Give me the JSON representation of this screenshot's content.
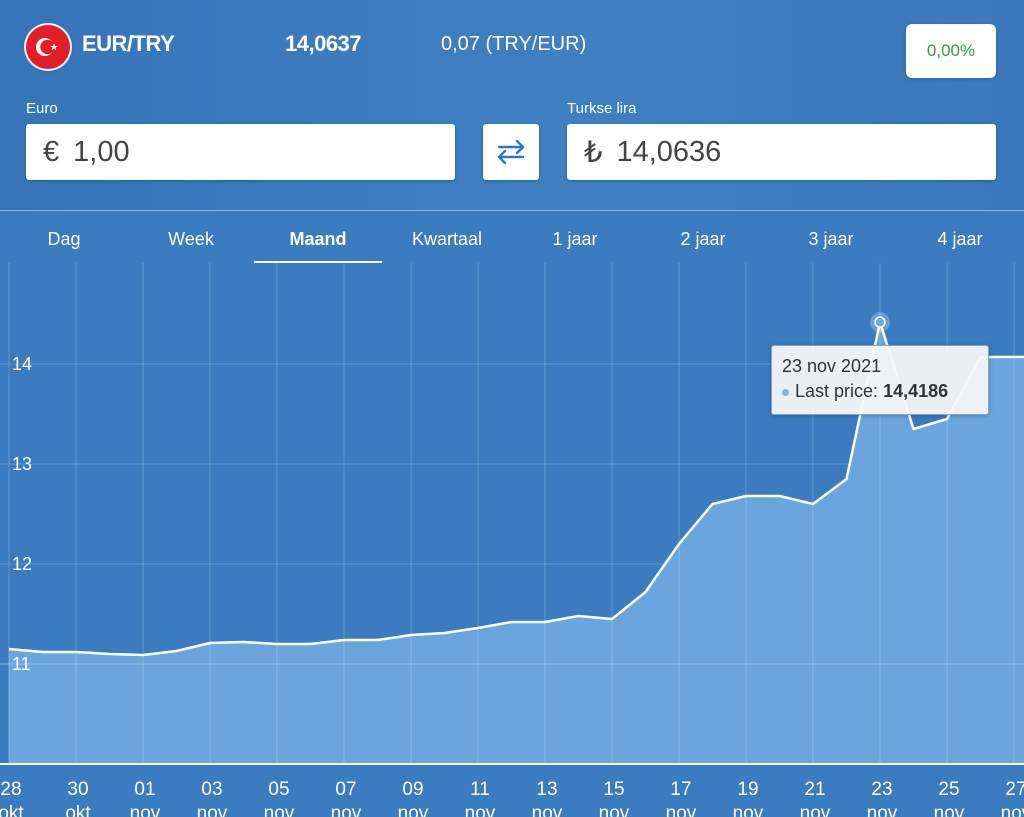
{
  "header": {
    "pair": "EUR/TRY",
    "rate": "14,0637",
    "inverse": "0,07 (TRY/EUR)",
    "change": "0,00%"
  },
  "converter": {
    "from_label": "Euro",
    "from_symbol": "€",
    "from_value": "1,00",
    "to_label": "Turkse lira",
    "to_symbol": "₺",
    "to_value": "14,0636"
  },
  "tabs": [
    {
      "label": "Dag",
      "active": false
    },
    {
      "label": "Week",
      "active": false
    },
    {
      "label": "Maand",
      "active": true
    },
    {
      "label": "Kwartaal",
      "active": false
    },
    {
      "label": "1 jaar",
      "active": false
    },
    {
      "label": "2 jaar",
      "active": false
    },
    {
      "label": "3 jaar",
      "active": false
    },
    {
      "label": "4 jaar",
      "active": false
    }
  ],
  "tooltip": {
    "date": "23 nov 2021",
    "series_label": "Last price:",
    "value": "14,4186"
  },
  "colors": {
    "background": "#3a7cbf",
    "area_fill": "#6fa8e0",
    "line": "#ffffff",
    "positive": "#3a9a3a"
  },
  "chart_data": {
    "type": "area",
    "x": [
      "2021-10-28",
      "2021-10-29",
      "2021-10-30",
      "2021-10-31",
      "2021-11-01",
      "2021-11-02",
      "2021-11-03",
      "2021-11-04",
      "2021-11-05",
      "2021-11-06",
      "2021-11-07",
      "2021-11-08",
      "2021-11-09",
      "2021-11-10",
      "2021-11-11",
      "2021-11-12",
      "2021-11-13",
      "2021-11-14",
      "2021-11-15",
      "2021-11-16",
      "2021-11-17",
      "2021-11-18",
      "2021-11-19",
      "2021-11-20",
      "2021-11-21",
      "2021-11-22",
      "2021-11-23",
      "2021-11-24",
      "2021-11-25",
      "2021-11-26",
      "2021-11-27"
    ],
    "series": [
      {
        "values": [
          11.15,
          11.12,
          11.12,
          11.1,
          11.09,
          11.13,
          11.21,
          11.22,
          11.2,
          11.2,
          11.24,
          11.24,
          11.29,
          11.31,
          11.36,
          11.42,
          11.42,
          11.48,
          11.45,
          11.72,
          12.2,
          12.6,
          12.68,
          12.68,
          12.6,
          12.85,
          14.4186,
          13.35,
          13.45,
          14.07,
          14.07
        ]
      }
    ],
    "x_ticks": [
      {
        "day": "28",
        "month": "okt"
      },
      {
        "day": "30",
        "month": "okt"
      },
      {
        "day": "01",
        "month": "nov"
      },
      {
        "day": "03",
        "month": "nov"
      },
      {
        "day": "05",
        "month": "nov"
      },
      {
        "day": "07",
        "month": "nov"
      },
      {
        "day": "09",
        "month": "nov"
      },
      {
        "day": "11",
        "month": "nov"
      },
      {
        "day": "13",
        "month": "nov"
      },
      {
        "day": "15",
        "month": "nov"
      },
      {
        "day": "17",
        "month": "nov"
      },
      {
        "day": "19",
        "month": "nov"
      },
      {
        "day": "21",
        "month": "nov"
      },
      {
        "day": "23",
        "month": "nov"
      },
      {
        "day": "25",
        "month": "nov"
      },
      {
        "day": "27",
        "month": "nov"
      }
    ],
    "y_ticks": [
      "11",
      "12",
      "13",
      "14"
    ],
    "ylim": [
      10.0,
      15.0
    ],
    "grid": true,
    "highlight_index": 26
  }
}
